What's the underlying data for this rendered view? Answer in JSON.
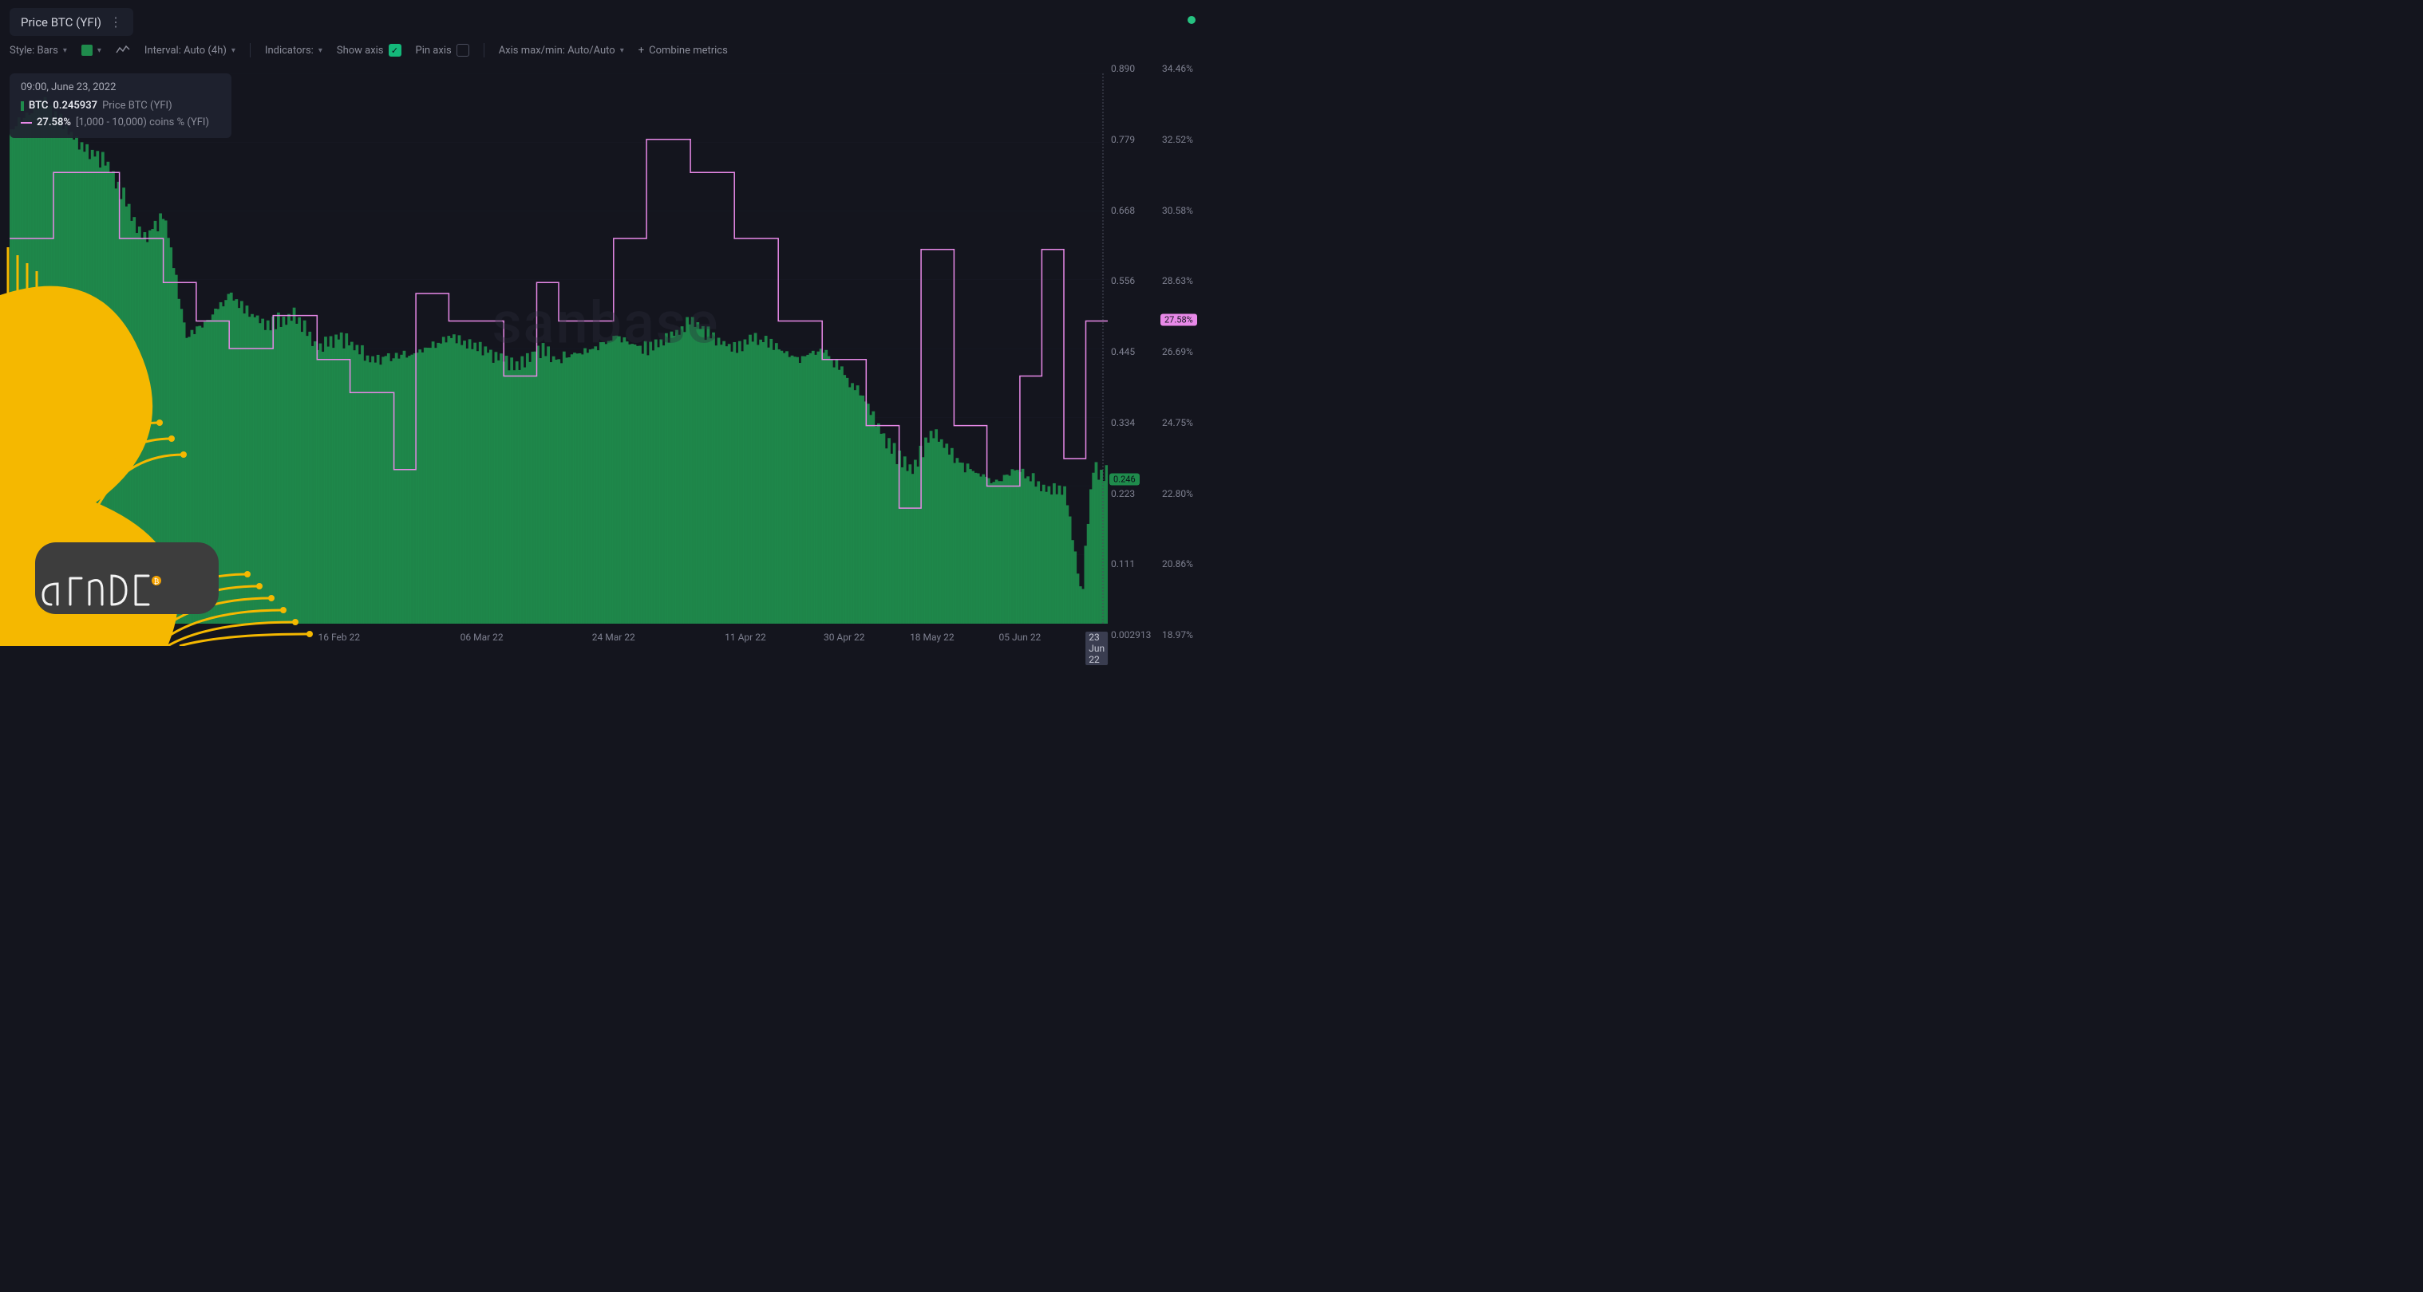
{
  "title": "Price BTC (YFI)",
  "status_indicator_color": "#26c281",
  "toolbar": {
    "style_label": "Style: Bars",
    "interval_label": "Interval: Auto (4h)",
    "indicators_label": "Indicators:",
    "show_axis_label": "Show axis",
    "show_axis_checked": true,
    "pin_axis_label": "Pin axis",
    "pin_axis_checked": false,
    "axis_minmax_label": "Axis max/min: Auto/Auto",
    "combine_label": "Combine metrics"
  },
  "info": {
    "timestamp": "09:00, June 23, 2022",
    "series1": {
      "symbol": "BTC",
      "value": "0.245937",
      "desc": "Price BTC (YFI)",
      "color": "#1f8b4c"
    },
    "series2": {
      "value": "27.58%",
      "desc": "[1,000 - 10,000) coins % (YFI)",
      "color": "#e889e8"
    }
  },
  "watermark_text": "sanbase",
  "chart": {
    "type": "combo-bar-line",
    "background_color": "#14151e",
    "grid_color": "#23263a",
    "x_domain": [
      0,
      1
    ],
    "x_ticks": [
      {
        "pos": 0.3,
        "label": "16 Feb 22"
      },
      {
        "pos": 0.43,
        "label": "06 Mar 22"
      },
      {
        "pos": 0.55,
        "label": "24 Mar 22"
      },
      {
        "pos": 0.67,
        "label": "11 Apr 22"
      },
      {
        "pos": 0.76,
        "label": "30 Apr 22"
      },
      {
        "pos": 0.84,
        "label": "18 May 22"
      },
      {
        "pos": 0.92,
        "label": "05 Jun 22"
      },
      {
        "pos": 0.99,
        "label": "23 Jun 22",
        "current": true
      }
    ],
    "left_axis": {
      "min": 0.002913,
      "max": 0.89,
      "ticks": [
        0.89,
        0.779,
        0.668,
        0.556,
        0.445,
        0.334,
        0.223,
        0.111,
        0.002913
      ],
      "current_value": 0.246,
      "current_badge_color": "#1f8b4c",
      "current_badge_text_color": "#0c1018"
    },
    "right_axis": {
      "min": 18.97,
      "max": 34.46,
      "ticks": [
        34.46,
        32.52,
        30.58,
        28.63,
        26.69,
        24.75,
        22.8,
        20.86,
        18.97
      ],
      "current_value": 27.58,
      "current_badge_color": "#e889e8",
      "current_badge_text_color": "#14151e"
    },
    "green_series": {
      "color": "#1f8b4c",
      "points": [
        [
          0.0,
          0.9
        ],
        [
          0.03,
          0.95
        ],
        [
          0.06,
          0.88
        ],
        [
          0.09,
          0.83
        ],
        [
          0.12,
          0.7
        ],
        [
          0.14,
          0.74
        ],
        [
          0.16,
          0.52
        ],
        [
          0.18,
          0.55
        ],
        [
          0.2,
          0.6
        ],
        [
          0.23,
          0.54
        ],
        [
          0.26,
          0.56
        ],
        [
          0.28,
          0.5
        ],
        [
          0.3,
          0.52
        ],
        [
          0.33,
          0.48
        ],
        [
          0.36,
          0.49
        ],
        [
          0.38,
          0.5
        ],
        [
          0.4,
          0.52
        ],
        [
          0.43,
          0.5
        ],
        [
          0.46,
          0.47
        ],
        [
          0.48,
          0.5
        ],
        [
          0.5,
          0.48
        ],
        [
          0.53,
          0.5
        ],
        [
          0.55,
          0.52
        ],
        [
          0.58,
          0.5
        ],
        [
          0.6,
          0.52
        ],
        [
          0.62,
          0.55
        ],
        [
          0.64,
          0.52
        ],
        [
          0.66,
          0.5
        ],
        [
          0.68,
          0.52
        ],
        [
          0.7,
          0.5
        ],
        [
          0.72,
          0.48
        ],
        [
          0.74,
          0.5
        ],
        [
          0.76,
          0.45
        ],
        [
          0.78,
          0.4
        ],
        [
          0.8,
          0.32
        ],
        [
          0.82,
          0.28
        ],
        [
          0.84,
          0.35
        ],
        [
          0.86,
          0.3
        ],
        [
          0.88,
          0.27
        ],
        [
          0.9,
          0.26
        ],
        [
          0.92,
          0.28
        ],
        [
          0.94,
          0.25
        ],
        [
          0.96,
          0.24
        ],
        [
          0.975,
          0.05
        ],
        [
          0.985,
          0.28
        ],
        [
          1.0,
          0.27
        ]
      ]
    },
    "pink_series": {
      "color": "#e889e8",
      "line_width": 1.5,
      "points": [
        [
          0.0,
          0.7
        ],
        [
          0.04,
          0.7
        ],
        [
          0.04,
          0.82
        ],
        [
          0.1,
          0.82
        ],
        [
          0.1,
          0.7
        ],
        [
          0.14,
          0.7
        ],
        [
          0.14,
          0.62
        ],
        [
          0.17,
          0.62
        ],
        [
          0.17,
          0.55
        ],
        [
          0.2,
          0.55
        ],
        [
          0.2,
          0.5
        ],
        [
          0.24,
          0.5
        ],
        [
          0.24,
          0.56
        ],
        [
          0.28,
          0.56
        ],
        [
          0.28,
          0.48
        ],
        [
          0.31,
          0.48
        ],
        [
          0.31,
          0.42
        ],
        [
          0.35,
          0.42
        ],
        [
          0.35,
          0.28
        ],
        [
          0.37,
          0.28
        ],
        [
          0.37,
          0.6
        ],
        [
          0.4,
          0.6
        ],
        [
          0.4,
          0.55
        ],
        [
          0.45,
          0.55
        ],
        [
          0.45,
          0.45
        ],
        [
          0.48,
          0.45
        ],
        [
          0.48,
          0.62
        ],
        [
          0.5,
          0.62
        ],
        [
          0.5,
          0.55
        ],
        [
          0.55,
          0.55
        ],
        [
          0.55,
          0.7
        ],
        [
          0.58,
          0.7
        ],
        [
          0.58,
          0.88
        ],
        [
          0.62,
          0.88
        ],
        [
          0.62,
          0.82
        ],
        [
          0.66,
          0.82
        ],
        [
          0.66,
          0.7
        ],
        [
          0.7,
          0.7
        ],
        [
          0.7,
          0.55
        ],
        [
          0.74,
          0.55
        ],
        [
          0.74,
          0.48
        ],
        [
          0.78,
          0.48
        ],
        [
          0.78,
          0.36
        ],
        [
          0.81,
          0.36
        ],
        [
          0.81,
          0.21
        ],
        [
          0.83,
          0.21
        ],
        [
          0.83,
          0.68
        ],
        [
          0.86,
          0.68
        ],
        [
          0.86,
          0.36
        ],
        [
          0.89,
          0.36
        ],
        [
          0.89,
          0.25
        ],
        [
          0.92,
          0.25
        ],
        [
          0.92,
          0.45
        ],
        [
          0.94,
          0.45
        ],
        [
          0.94,
          0.68
        ],
        [
          0.96,
          0.68
        ],
        [
          0.96,
          0.3
        ],
        [
          0.98,
          0.3
        ],
        [
          0.98,
          0.55
        ],
        [
          1.0,
          0.55
        ]
      ]
    }
  },
  "overlay": {
    "yellow": "#f5b800",
    "badge_bg": "#3d3d3d",
    "badge_fg": "#f2f2f2"
  }
}
